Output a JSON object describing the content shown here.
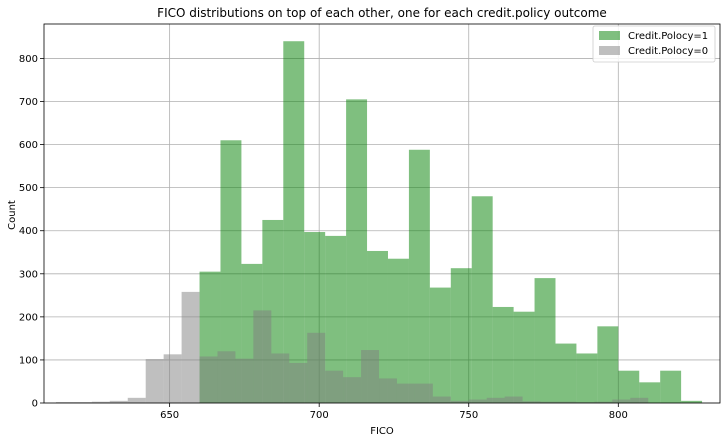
{
  "chart_data": {
    "type": "bar",
    "title": "FICO distributions on top of each other, one for each credit.policy outcome",
    "xlabel": "FICO",
    "ylabel": "Count",
    "xlim": [
      608,
      834
    ],
    "ylim": [
      0,
      880
    ],
    "xticks": [
      650,
      700,
      750,
      800
    ],
    "yticks": [
      0,
      100,
      200,
      300,
      400,
      500,
      600,
      700,
      800
    ],
    "grid": true,
    "legend_position": "top-right",
    "series": [
      {
        "name": "Credit.Polocy=1",
        "color": "#008000",
        "opacity": 0.5,
        "bins": [
          {
            "x0": 660,
            "x1": 667,
            "value": 305
          },
          {
            "x0": 667,
            "x1": 674,
            "value": 610
          },
          {
            "x0": 674,
            "x1": 681,
            "value": 323
          },
          {
            "x0": 681,
            "x1": 688,
            "value": 425
          },
          {
            "x0": 688,
            "x1": 695,
            "value": 840
          },
          {
            "x0": 695,
            "x1": 702,
            "value": 397
          },
          {
            "x0": 702,
            "x1": 709,
            "value": 388
          },
          {
            "x0": 709,
            "x1": 716,
            "value": 705
          },
          {
            "x0": 716,
            "x1": 723,
            "value": 353
          },
          {
            "x0": 723,
            "x1": 730,
            "value": 335
          },
          {
            "x0": 730,
            "x1": 737,
            "value": 588
          },
          {
            "x0": 737,
            "x1": 744,
            "value": 268
          },
          {
            "x0": 744,
            "x1": 751,
            "value": 313
          },
          {
            "x0": 751,
            "x1": 758,
            "value": 480
          },
          {
            "x0": 758,
            "x1": 765,
            "value": 223
          },
          {
            "x0": 765,
            "x1": 772,
            "value": 212
          },
          {
            "x0": 772,
            "x1": 779,
            "value": 290
          },
          {
            "x0": 779,
            "x1": 786,
            "value": 138
          },
          {
            "x0": 786,
            "x1": 793,
            "value": 115
          },
          {
            "x0": 793,
            "x1": 800,
            "value": 178
          },
          {
            "x0": 800,
            "x1": 807,
            "value": 75
          },
          {
            "x0": 807,
            "x1": 814,
            "value": 48
          },
          {
            "x0": 814,
            "x1": 821,
            "value": 75
          },
          {
            "x0": 821,
            "x1": 828,
            "value": 5
          }
        ]
      },
      {
        "name": "Credit.Polocy=0",
        "color": "#808080",
        "opacity": 0.5,
        "bins": [
          {
            "x0": 612,
            "x1": 618,
            "value": 2
          },
          {
            "x0": 618,
            "x1": 624,
            "value": 2
          },
          {
            "x0": 624,
            "x1": 630,
            "value": 3
          },
          {
            "x0": 630,
            "x1": 636,
            "value": 5
          },
          {
            "x0": 636,
            "x1": 642,
            "value": 12
          },
          {
            "x0": 642,
            "x1": 648,
            "value": 102
          },
          {
            "x0": 648,
            "x1": 654,
            "value": 113
          },
          {
            "x0": 654,
            "x1": 660,
            "value": 258
          },
          {
            "x0": 660,
            "x1": 666,
            "value": 108
          },
          {
            "x0": 666,
            "x1": 672,
            "value": 120
          },
          {
            "x0": 672,
            "x1": 678,
            "value": 103
          },
          {
            "x0": 678,
            "x1": 684,
            "value": 215
          },
          {
            "x0": 684,
            "x1": 690,
            "value": 115
          },
          {
            "x0": 690,
            "x1": 696,
            "value": 93
          },
          {
            "x0": 696,
            "x1": 702,
            "value": 163
          },
          {
            "x0": 702,
            "x1": 708,
            "value": 75
          },
          {
            "x0": 708,
            "x1": 714,
            "value": 60
          },
          {
            "x0": 714,
            "x1": 720,
            "value": 123
          },
          {
            "x0": 720,
            "x1": 726,
            "value": 57
          },
          {
            "x0": 726,
            "x1": 732,
            "value": 45
          },
          {
            "x0": 732,
            "x1": 738,
            "value": 45
          },
          {
            "x0": 738,
            "x1": 744,
            "value": 15
          },
          {
            "x0": 744,
            "x1": 750,
            "value": 5
          },
          {
            "x0": 750,
            "x1": 756,
            "value": 8
          },
          {
            "x0": 756,
            "x1": 762,
            "value": 12
          },
          {
            "x0": 762,
            "x1": 768,
            "value": 15
          },
          {
            "x0": 768,
            "x1": 774,
            "value": 4
          },
          {
            "x0": 774,
            "x1": 780,
            "value": 3
          },
          {
            "x0": 780,
            "x1": 786,
            "value": 3
          },
          {
            "x0": 786,
            "x1": 792,
            "value": 2
          },
          {
            "x0": 792,
            "x1": 798,
            "value": 3
          },
          {
            "x0": 798,
            "x1": 804,
            "value": 8
          },
          {
            "x0": 804,
            "x1": 810,
            "value": 12
          }
        ]
      }
    ]
  }
}
